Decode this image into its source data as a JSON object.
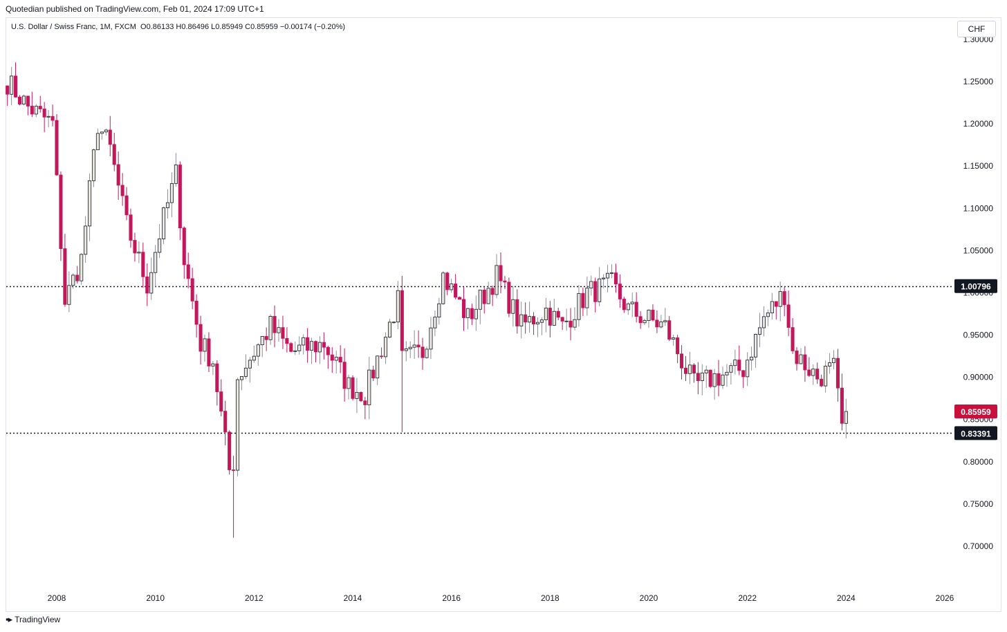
{
  "header": {
    "published": "Quotedian published on TradingView.com, Feb 01, 2024 17:09 UTC+1",
    "symbol": "U.S. Dollar / Swiss Franc, 1M, FXCM",
    "ohlc": "O0.86133 H0.86496 L0.85949 C0.85959 −0.00174 (−0.20%)"
  },
  "currency": "CHF",
  "branding": {
    "logo_icon": "tradingview-logo-icon",
    "name": "TradingView"
  },
  "colors": {
    "up": "#b2b5be",
    "down": "#c2185b",
    "up_body": "#e8e6df",
    "line": "#131722"
  },
  "chart_data": {
    "type": "candlestick",
    "x_ticks": [
      "2008",
      "2010",
      "2012",
      "2014",
      "2016",
      "2018",
      "2020",
      "2022",
      "2024",
      "2026"
    ],
    "y_ticks": [
      "1.30000",
      "1.25000",
      "1.20000",
      "1.15000",
      "1.10000",
      "1.05000",
      "1.00000",
      "0.95000",
      "0.90000",
      "0.85000",
      "0.80000",
      "0.75000",
      "0.70000"
    ],
    "ylim": [
      0.65,
      1.3
    ],
    "xlim": [
      "2007-01",
      "2026-10"
    ],
    "horizontal_lines": [
      {
        "value": 1.00796,
        "label": "1.00796"
      },
      {
        "value": 0.83391,
        "label": "0.83391"
      }
    ],
    "last_price": {
      "value": 0.85959,
      "label": "0.85959"
    },
    "anchors": [
      [
        "2007-01",
        1.25
      ],
      [
        "2007-06",
        1.22
      ],
      [
        "2007-12",
        1.2
      ],
      [
        "2008-03",
        0.99
      ],
      [
        "2008-07",
        1.04
      ],
      [
        "2008-11",
        1.2
      ],
      [
        "2009-02",
        1.17
      ],
      [
        "2009-06",
        1.08
      ],
      [
        "2009-11",
        1.01
      ],
      [
        "2010-02",
        1.07
      ],
      [
        "2010-06",
        1.14
      ],
      [
        "2010-08",
        1.04
      ],
      [
        "2010-12",
        0.94
      ],
      [
        "2011-03",
        0.92
      ],
      [
        "2011-07",
        0.79
      ],
      [
        "2011-08",
        0.8
      ],
      [
        "2011-09",
        0.9
      ],
      [
        "2012-05",
        0.96
      ],
      [
        "2012-10",
        0.93
      ],
      [
        "2013-06",
        0.94
      ],
      [
        "2013-12",
        0.89
      ],
      [
        "2014-04",
        0.88
      ],
      [
        "2014-12",
        0.99
      ],
      [
        "2015-01",
        0.92
      ],
      [
        "2015-06",
        0.93
      ],
      [
        "2015-11",
        1.02
      ],
      [
        "2016-05",
        0.97
      ],
      [
        "2016-12",
        1.02
      ],
      [
        "2017-06",
        0.96
      ],
      [
        "2017-09",
        0.97
      ],
      [
        "2017-12",
        0.98
      ],
      [
        "2018-04",
        0.96
      ],
      [
        "2018-10",
        1.0
      ],
      [
        "2019-04",
        1.01
      ],
      [
        "2019-08",
        0.98
      ],
      [
        "2019-12",
        0.97
      ],
      [
        "2020-05",
        0.96
      ],
      [
        "2020-12",
        0.89
      ],
      [
        "2021-05",
        0.9
      ],
      [
        "2021-12",
        0.91
      ],
      [
        "2022-05",
        0.97
      ],
      [
        "2022-10",
        1.0
      ],
      [
        "2022-12",
        0.93
      ],
      [
        "2023-06",
        0.9
      ],
      [
        "2023-10",
        0.91
      ],
      [
        "2023-12",
        0.84
      ],
      [
        "2024-01",
        0.86
      ]
    ]
  }
}
